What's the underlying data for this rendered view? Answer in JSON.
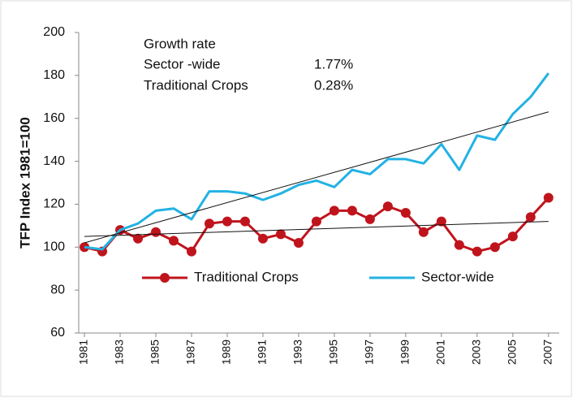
{
  "chart_data": {
    "type": "line",
    "y_label": "TFP Index 1981=100",
    "x": [
      1981,
      1982,
      1983,
      1984,
      1985,
      1986,
      1987,
      1988,
      1989,
      1990,
      1991,
      1992,
      1993,
      1994,
      1995,
      1996,
      1997,
      1998,
      1999,
      2000,
      2001,
      2002,
      2003,
      2004,
      2005,
      2006,
      2007
    ],
    "series": [
      {
        "name": "Traditional Crops",
        "color": "#c0141c",
        "marker": true,
        "values": [
          100,
          98,
          108,
          104,
          107,
          103,
          98,
          111,
          112,
          112,
          104,
          106,
          102,
          112,
          117,
          117,
          113,
          119,
          116,
          107,
          112,
          101,
          98,
          100,
          105,
          114,
          123
        ]
      },
      {
        "name": "Sector-wide",
        "color": "#22b2e4",
        "marker": false,
        "values": [
          100,
          99,
          108,
          111,
          117,
          118,
          113,
          126,
          126,
          125,
          122,
          125,
          129,
          131,
          128,
          136,
          134,
          141,
          141,
          139,
          148,
          136,
          152,
          150,
          162,
          170,
          181
        ]
      }
    ],
    "trend_lines": [
      {
        "x": [
          1981,
          2007
        ],
        "values": [
          105,
          112
        ],
        "color": "#111111"
      },
      {
        "x": [
          1981,
          2007
        ],
        "values": [
          102,
          163
        ],
        "color": "#111111"
      }
    ],
    "annotation": {
      "title": "Growth rate",
      "rows": [
        [
          "Sector -wide",
          "1.77%"
        ],
        [
          "Traditional Crops",
          "0.28%"
        ]
      ]
    },
    "xlim": [
      1980.68,
      2007.6
    ],
    "xticks": [
      1981,
      1983,
      1985,
      1987,
      1989,
      1991,
      1993,
      1995,
      1997,
      1999,
      2001,
      2003,
      2005,
      2007
    ],
    "ylim": [
      60,
      200
    ],
    "yticks": [
      60,
      80,
      100,
      120,
      140,
      160,
      180,
      200
    ],
    "grid": false,
    "legend": "bottom"
  }
}
